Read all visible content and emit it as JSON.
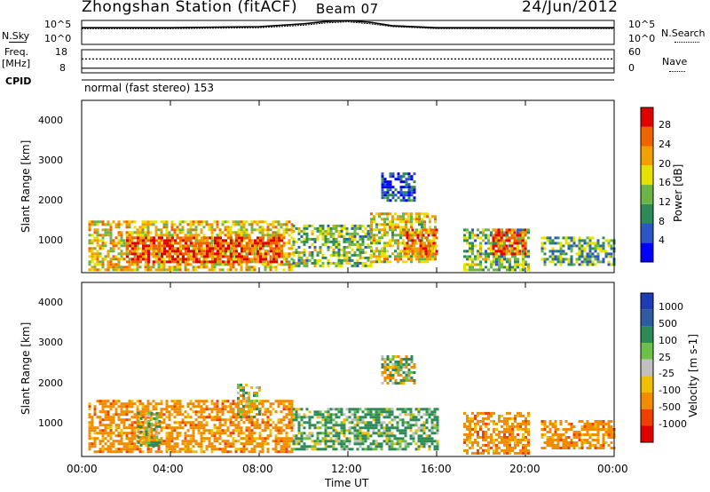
{
  "header": {
    "station": "Zhongshan Station (fitACF)",
    "beam": "Beam 07",
    "date": "24/Jun/2012"
  },
  "top_panel": {
    "left_label": "N.Sky",
    "right_label": "N.Search",
    "left_ticks": [
      "10^5",
      "10^0"
    ],
    "right_ticks": [
      "10^5",
      "10^0"
    ]
  },
  "freq_panel": {
    "left_label_1": "Freq.",
    "left_label_2": "[MHz]",
    "right_label": "Nave",
    "left_ticks": [
      "18",
      "8"
    ],
    "right_ticks": [
      "60",
      "0"
    ]
  },
  "cpid": {
    "label": "CPID",
    "value": "normal (fast stereo) 153"
  },
  "x_ticks": [
    "00:00",
    "04:00",
    "08:00",
    "12:00",
    "16:00",
    "20:00",
    "00:00"
  ],
  "x_label": "Time UT",
  "y_label": "Slant Range [km]",
  "y_ticks": [
    "1000",
    "2000",
    "3000",
    "4000"
  ],
  "power": {
    "label": "Power [dB]",
    "ticks": [
      "4",
      "8",
      "12",
      "16",
      "20",
      "24",
      "28"
    ],
    "colors": [
      "#0000ff",
      "#2c55c8",
      "#2e8b57",
      "#6cb448",
      "#e8e000",
      "#f0a000",
      "#f06400",
      "#e00000"
    ]
  },
  "velocity": {
    "label": "Velocity [m s-1]",
    "ticks": [
      "1000",
      "500",
      "100",
      "25",
      "-25",
      "-100",
      "-500",
      "-1000"
    ],
    "colors": [
      "#1e3cb4",
      "#2e5c9e",
      "#2e8b57",
      "#6cc04a",
      "#c0c0c0",
      "#f0c000",
      "#f08c00",
      "#f04000",
      "#e00000"
    ]
  },
  "chart_data": [
    {
      "type": "line",
      "x_range_hours": [
        0,
        24
      ],
      "ylim": [
        1,
        100000
      ],
      "log_scale": true,
      "series": [
        {
          "x": [
            0,
            4,
            8,
            10,
            11,
            12,
            13,
            14,
            16,
            20,
            24
          ],
          "values": [
            3000,
            3000,
            5000,
            20000,
            60000,
            90000,
            40000,
            8000,
            3000,
            3000,
            3000
          ]
        },
        {
          "x": [
            0,
            4,
            8,
            10,
            11,
            12,
            13,
            14,
            16,
            20,
            24
          ],
          "values": [
            2000,
            2000,
            3000,
            10000,
            30000,
            50000,
            20000,
            5000,
            2000,
            2000,
            2000
          ]
        }
      ]
    },
    {
      "type": "line",
      "x_range_hours": [
        0,
        24
      ],
      "ylim": [
        8,
        18
      ],
      "series": [
        {
          "x": [
            0,
            24
          ],
          "values": [
            10,
            10
          ]
        },
        {
          "x": [
            0,
            24
          ],
          "values": [
            14,
            14
          ]
        }
      ]
    },
    {
      "type": "heatmap",
      "x_range_hours": [
        0,
        24
      ],
      "ylim": [
        200,
        4500
      ],
      "ylabel": "Slant Range [km]",
      "xlabel": "Time UT",
      "legend": "right",
      "blobs": [
        {
          "t": [
            0.3,
            9.5
          ],
          "r": [
            300,
            1500
          ],
          "v": 20
        },
        {
          "t": [
            2.0,
            9.0
          ],
          "r": [
            500,
            1100
          ],
          "v": 28
        },
        {
          "t": [
            9.5,
            13.0
          ],
          "r": [
            400,
            1400
          ],
          "v": 14
        },
        {
          "t": [
            13.0,
            16.0
          ],
          "r": [
            500,
            1700
          ],
          "v": 18
        },
        {
          "t": [
            13.5,
            15.0
          ],
          "r": [
            2000,
            2700
          ],
          "v": 6
        },
        {
          "t": [
            14.5,
            16.0
          ],
          "r": [
            700,
            1300
          ],
          "v": 24
        },
        {
          "t": [
            17.2,
            20.2
          ],
          "r": [
            300,
            1300
          ],
          "v": 14
        },
        {
          "t": [
            18.5,
            20.0
          ],
          "r": [
            700,
            1300
          ],
          "v": 28
        },
        {
          "t": [
            20.7,
            24.0
          ],
          "r": [
            400,
            1100
          ],
          "v": 12
        }
      ]
    },
    {
      "type": "heatmap",
      "x_range_hours": [
        0,
        24
      ],
      "ylim": [
        200,
        4500
      ],
      "ylabel": "Slant Range [km]",
      "xlabel": "Time UT",
      "legend": "right",
      "blobs": [
        {
          "t": [
            0.3,
            9.5
          ],
          "r": [
            300,
            1600
          ],
          "v": -300
        },
        {
          "t": [
            2.5,
            3.5
          ],
          "r": [
            500,
            1300
          ],
          "v": 50
        },
        {
          "t": [
            7.0,
            8.0
          ],
          "r": [
            1200,
            2000
          ],
          "v": 0
        },
        {
          "t": [
            9.5,
            16.0
          ],
          "r": [
            400,
            1400
          ],
          "v": 150
        },
        {
          "t": [
            13.5,
            15.0
          ],
          "r": [
            2000,
            2700
          ],
          "v": 0
        },
        {
          "t": [
            17.2,
            20.2
          ],
          "r": [
            300,
            1300
          ],
          "v": -300
        },
        {
          "t": [
            20.7,
            24.0
          ],
          "r": [
            400,
            1100
          ],
          "v": -300
        }
      ]
    }
  ]
}
